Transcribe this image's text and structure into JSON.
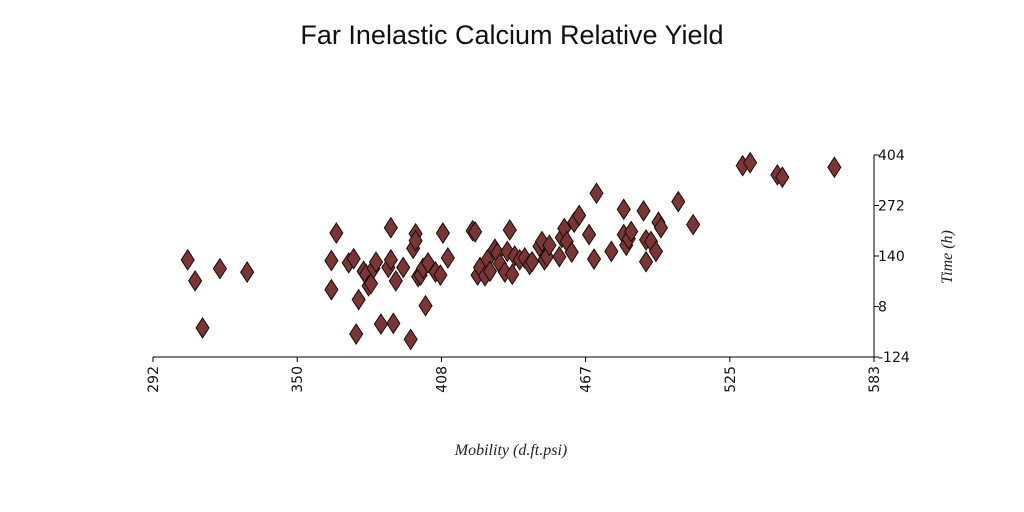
{
  "chart_data": {
    "type": "scatter",
    "title": "Far Inelastic Calcium Relative Yield",
    "xlabel": "Mobility (d.ft.psi)",
    "ylabel": "Time (h)",
    "xlim": [
      292,
      583
    ],
    "ylim": [
      -124,
      404
    ],
    "x_ticks": [
      "292",
      "350",
      "408",
      "467",
      "525",
      "583"
    ],
    "y_ticks": [
      "404",
      "272",
      "140",
      "8",
      "-124"
    ],
    "grid": false,
    "marker": "diamond",
    "color": "#7a3535",
    "points": [
      [
        306,
        130
      ],
      [
        309,
        75
      ],
      [
        312,
        -48
      ],
      [
        319,
        107
      ],
      [
        330,
        98
      ],
      [
        364,
        128
      ],
      [
        366,
        200
      ],
      [
        364,
        52
      ],
      [
        371,
        122
      ],
      [
        373,
        133
      ],
      [
        374,
        -64
      ],
      [
        375,
        26
      ],
      [
        377,
        100
      ],
      [
        378,
        92
      ],
      [
        379,
        62
      ],
      [
        380,
        68
      ],
      [
        381,
        108
      ],
      [
        382,
        124
      ],
      [
        384,
        -38
      ],
      [
        387,
        110
      ],
      [
        388,
        214
      ],
      [
        388,
        130
      ],
      [
        389,
        -36
      ],
      [
        390,
        75
      ],
      [
        393,
        110
      ],
      [
        396,
        -78
      ],
      [
        397,
        160
      ],
      [
        398,
        198
      ],
      [
        398,
        180
      ],
      [
        399,
        86
      ],
      [
        400,
        90
      ],
      [
        401,
        108
      ],
      [
        402,
        10
      ],
      [
        403,
        122
      ],
      [
        406,
        98
      ],
      [
        408,
        90
      ],
      [
        409,
        200
      ],
      [
        411,
        135
      ],
      [
        421,
        206
      ],
      [
        422,
        203
      ],
      [
        423,
        90
      ],
      [
        424,
        110
      ],
      [
        426,
        88
      ],
      [
        427,
        130
      ],
      [
        428,
        100
      ],
      [
        430,
        158
      ],
      [
        431,
        148
      ],
      [
        432,
        120
      ],
      [
        434,
        98
      ],
      [
        435,
        152
      ],
      [
        436,
        208
      ],
      [
        437,
        92
      ],
      [
        438,
        140
      ],
      [
        440,
        130
      ],
      [
        442,
        135
      ],
      [
        444,
        118
      ],
      [
        445,
        125
      ],
      [
        448,
        165
      ],
      [
        449,
        178
      ],
      [
        450,
        130
      ],
      [
        451,
        138
      ],
      [
        452,
        168
      ],
      [
        456,
        138
      ],
      [
        457,
        188
      ],
      [
        458,
        212
      ],
      [
        459,
        178
      ],
      [
        461,
        150
      ],
      [
        462,
        228
      ],
      [
        464,
        246
      ],
      [
        468,
        196
      ],
      [
        470,
        132
      ],
      [
        471,
        304
      ],
      [
        477,
        152
      ],
      [
        482,
        196
      ],
      [
        482,
        262
      ],
      [
        483,
        168
      ],
      [
        484,
        185
      ],
      [
        485,
        204
      ],
      [
        490,
        258
      ],
      [
        491,
        182
      ],
      [
        491,
        125
      ],
      [
        493,
        178
      ],
      [
        495,
        152
      ],
      [
        496,
        228
      ],
      [
        497,
        214
      ],
      [
        504,
        282
      ],
      [
        510,
        222
      ],
      [
        530,
        376
      ],
      [
        533,
        384
      ],
      [
        544,
        352
      ],
      [
        546,
        346
      ],
      [
        567,
        372
      ]
    ]
  }
}
